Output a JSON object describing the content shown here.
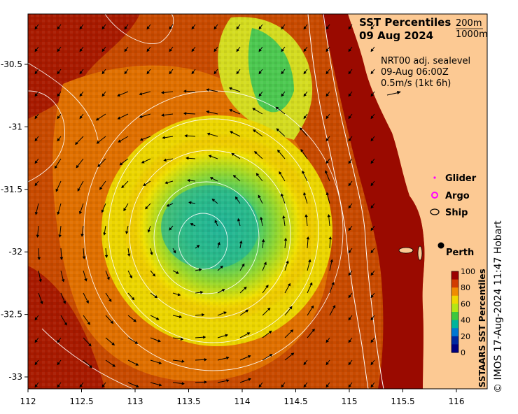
{
  "title": {
    "line1": "SST Percentiles",
    "line2": "09 Aug 2024"
  },
  "contour_legend": {
    "depth1": "200m",
    "depth2": "1000m"
  },
  "current_info": {
    "line1": "NRT00 adj. sealevel",
    "line2": "09-Aug 06:00Z",
    "line3": "0.5m/s (1kt 6h)"
  },
  "observation_legend": [
    {
      "label": "Glider",
      "symbol": "dot",
      "color": "#ff00ff"
    },
    {
      "label": "Argo",
      "symbol": "circle",
      "color": "#ff00ff"
    },
    {
      "label": "Ship",
      "symbol": "circle",
      "color": "#000000"
    }
  ],
  "place_label": "Perth",
  "colorbar": {
    "title": "SSTAARS SST Percentiles",
    "ticks": [
      "100",
      "80",
      "60",
      "40",
      "20",
      "0"
    ],
    "colors": [
      "#9a0000",
      "#d23c00",
      "#f08c00",
      "#f0d800",
      "#b4e614",
      "#3cc83c",
      "#00b49b",
      "#0078d2",
      "#0028a0",
      "#000080"
    ]
  },
  "axes": {
    "x_ticks": [
      "112",
      "112.5",
      "113",
      "113.5",
      "114",
      "114.5",
      "115",
      "115.5",
      "116"
    ],
    "y_ticks": [
      "-30.5",
      "-31",
      "-31.5",
      "-32",
      "-32.5",
      "-33"
    ],
    "x_range": [
      112,
      116.3
    ],
    "y_range": [
      -33.1,
      -30.1
    ]
  },
  "eddy_center": {
    "lon": 113.5,
    "lat": -31.9
  },
  "credit": "© IMOS 17-Aug-2024 11:47 Hobart",
  "colors": {
    "land": "#fcc993",
    "ocean_warm": "#b02000",
    "ocean_mid": "#e06a00",
    "eddy_ring": "#f0e000",
    "eddy_core": "#50c850",
    "eddy_center": "#20b49a"
  }
}
